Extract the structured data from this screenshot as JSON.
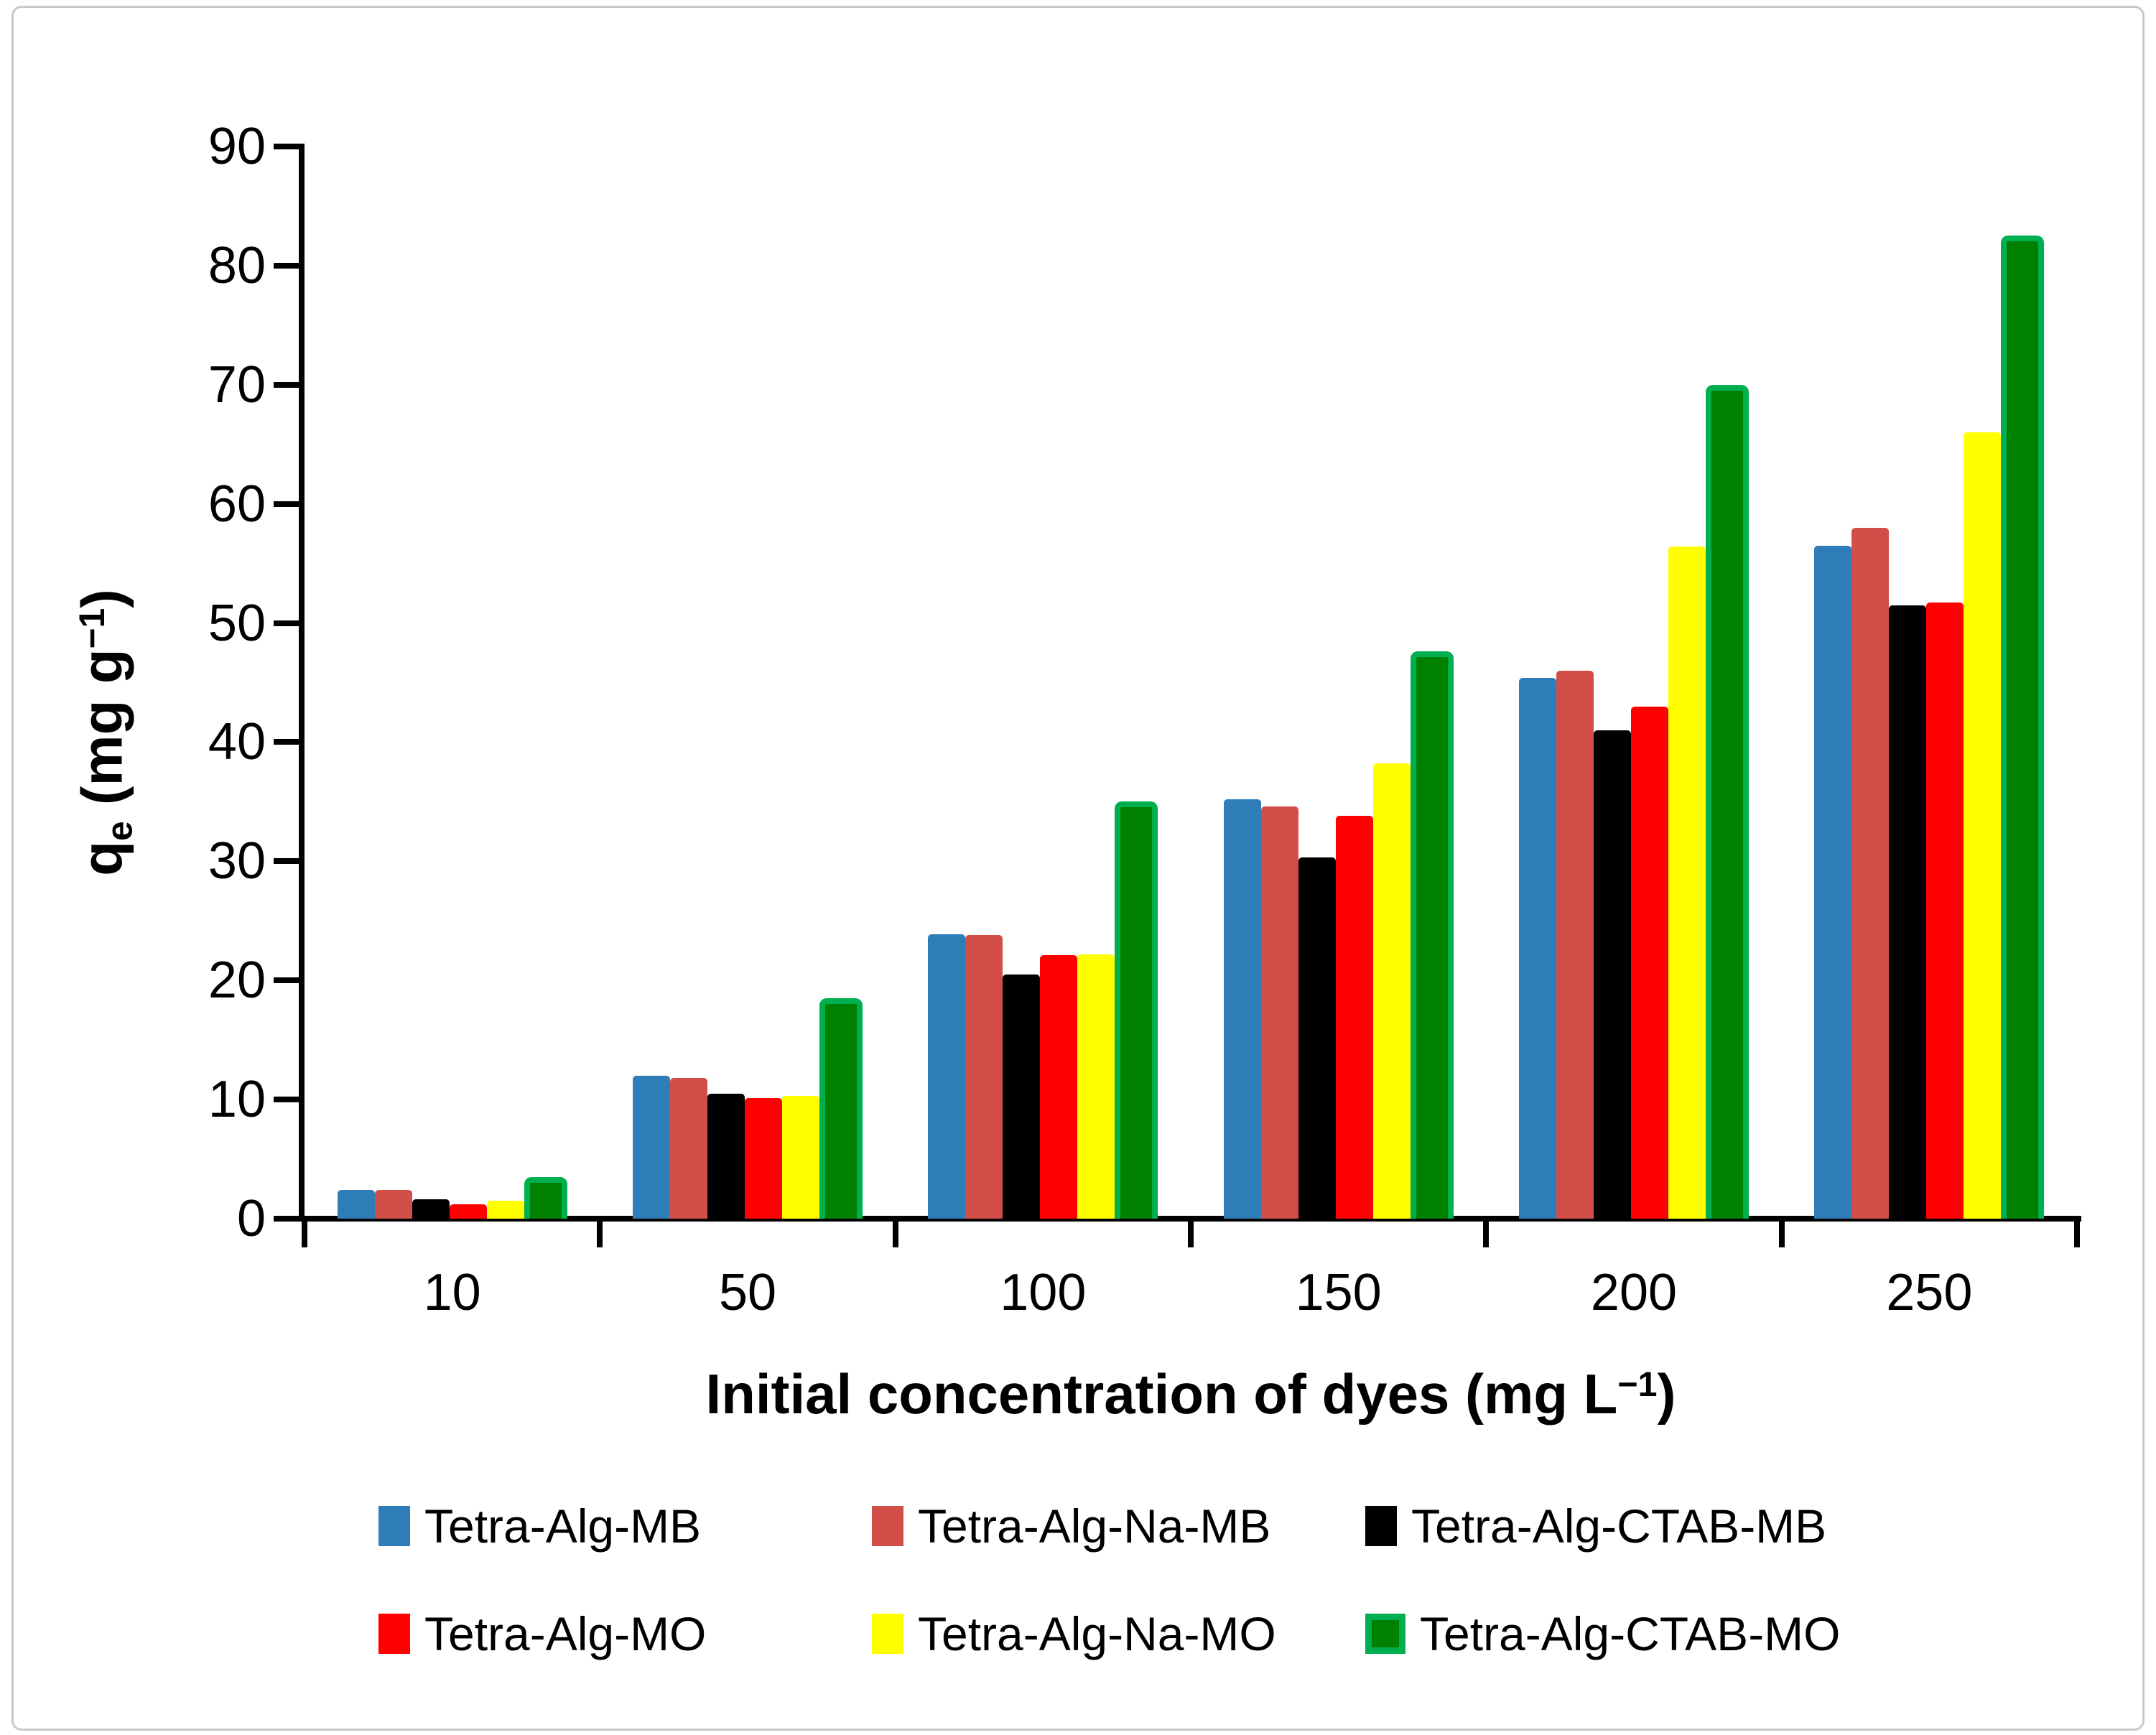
{
  "chart_data": {
    "type": "bar",
    "title": "",
    "xlabel": "Initial concentration of dyes (mg L−1)",
    "ylabel": "qe (mg g−1)",
    "xlabel_parts": {
      "text": "Initial concentration of dyes (mg L",
      "sup": "−1",
      "close": ")"
    },
    "ylabel_parts": {
      "base": "q",
      "sub": "e",
      "mid": " (mg g",
      "sup": "−1",
      "close": ")"
    },
    "categories": [
      "10",
      "50",
      "100",
      "150",
      "200",
      "250"
    ],
    "series": [
      {
        "name": "Tetra-Alg-MB",
        "color": "#2E7CB8",
        "values": [
          2.4,
          12.0,
          23.9,
          35.2,
          45.4,
          56.5
        ]
      },
      {
        "name": "Tetra-Alg-Na-MB",
        "color": "#D24E49",
        "values": [
          2.4,
          11.8,
          23.8,
          34.6,
          46.0,
          58.0
        ]
      },
      {
        "name": "Tetra-Alg-CTAB-MB",
        "color": "#000000",
        "values": [
          1.6,
          10.5,
          20.5,
          30.3,
          41.0,
          51.5
        ]
      },
      {
        "name": "Tetra-Alg-MO",
        "color": "#FF0000",
        "values": [
          1.2,
          10.1,
          22.1,
          33.8,
          43.0,
          51.7
        ]
      },
      {
        "name": "Tetra-Alg-Na-MO",
        "color": "#FFFF00",
        "values": [
          1.5,
          10.3,
          22.2,
          38.2,
          56.4,
          66.0
        ]
      },
      {
        "name": "Tetra-Alg-CTAB-MO",
        "color": "#008000",
        "border_color": "#00B050",
        "values": [
          3.5,
          18.5,
          35.0,
          47.6,
          70.0,
          82.5
        ]
      }
    ],
    "ylim": [
      0,
      90
    ],
    "ytick_step": 10,
    "grid": false,
    "legend_position": "bottom",
    "legend_rows": [
      [
        0,
        1,
        2
      ],
      [
        3,
        4,
        5
      ]
    ]
  }
}
